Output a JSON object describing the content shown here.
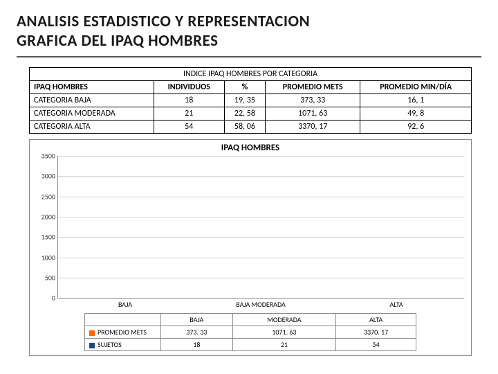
{
  "title_line1": "ANALISIS ESTADISTICO Y REPRESENTACION",
  "title_line2": "GRAFICA DEL IPAQ HOMBRES",
  "table": {
    "caption": "INDICE IPAQ HOMBRES POR CATEGORIA",
    "headers": [
      "IPAQ HOMBRES",
      "INDIVIDUOS",
      "%",
      "PROMEDIO METS",
      "PROMEDIO MIN/DÍA"
    ],
    "rows": [
      [
        "CATEGORIA BAJA",
        "18",
        "19, 35",
        "373, 33",
        "16, 1"
      ],
      [
        "CATEGORIA MODERADA",
        "21",
        "22, 58",
        "1071, 63",
        "49, 8"
      ],
      [
        "CATEGORIA ALTA",
        "54",
        "58, 06",
        "3370, 17",
        "92, 6"
      ]
    ]
  },
  "chart": {
    "title": "IPAQ HOMBRES",
    "type": "bar",
    "ylim": [
      0,
      3500
    ],
    "ytick_step": 500,
    "yticks": [
      "0",
      "500",
      "1000",
      "1500",
      "2000",
      "2500",
      "3000",
      "3500"
    ],
    "categories": [
      "BAJA",
      "MODERADA",
      "ALTA"
    ],
    "x_upper_labels": [
      "BAJA",
      "BAJA MODERADA",
      "ALTA"
    ],
    "series": [
      {
        "name": "PROMEDIO METS",
        "color": "#ff6600",
        "values": [
          373.33,
          1071.63,
          3370.17
        ],
        "labels": [
          "373. 33",
          "1071. 63",
          "3370. 17"
        ]
      },
      {
        "name": "SUJETOS",
        "color": "#1f497d",
        "values": [
          18,
          21,
          54
        ],
        "labels": [
          "18",
          "21",
          "54"
        ]
      }
    ],
    "grid_color": "#d0d0d0",
    "background_color": "#ffffff"
  }
}
